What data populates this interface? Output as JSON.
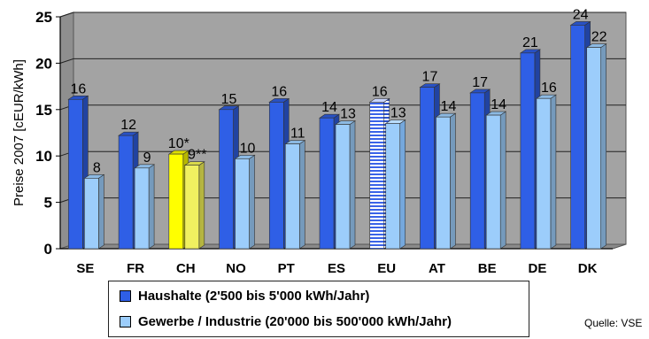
{
  "chart_data": {
    "type": "bar",
    "ylabel": "Preise 2007 [cEUR/kWh]",
    "ylim": [
      0,
      25
    ],
    "yticks": [
      0,
      5,
      10,
      15,
      20,
      25
    ],
    "grid": true,
    "categories": [
      "SE",
      "FR",
      "CH",
      "NO",
      "PT",
      "ES",
      "EU",
      "AT",
      "BE",
      "DE",
      "DK"
    ],
    "series": [
      {
        "name": "Haushalte (2'500 bis 5'000 kWh/Jahr)",
        "values": [
          16.1,
          12.2,
          10.2,
          15.0,
          15.8,
          14.1,
          15.8,
          17.4,
          16.8,
          21.1,
          24.1
        ],
        "labels": [
          "16",
          "12",
          "10*",
          "15",
          "16",
          "14",
          "16",
          "17",
          "17",
          "21",
          "24"
        ],
        "color": "#2f5fe6"
      },
      {
        "name": "Gewerbe / Industrie (20'000 bis 500'000 kWh/Jahr)",
        "values": [
          7.6,
          8.7,
          9.0,
          9.7,
          11.3,
          13.4,
          13.5,
          14.2,
          14.4,
          16.2,
          21.7
        ],
        "labels": [
          "8",
          "9",
          "9**",
          "10",
          "11",
          "13",
          "13",
          "14",
          "14",
          "16",
          "22"
        ],
        "color": "#9ccdfb"
      }
    ],
    "highlight": {
      "category": "CH",
      "color": "#ffff00"
    },
    "patterned": {
      "category": "EU",
      "style": "horizontal-stripes"
    },
    "legend_position": "bottom",
    "source_note": "Quelle: VSE"
  }
}
